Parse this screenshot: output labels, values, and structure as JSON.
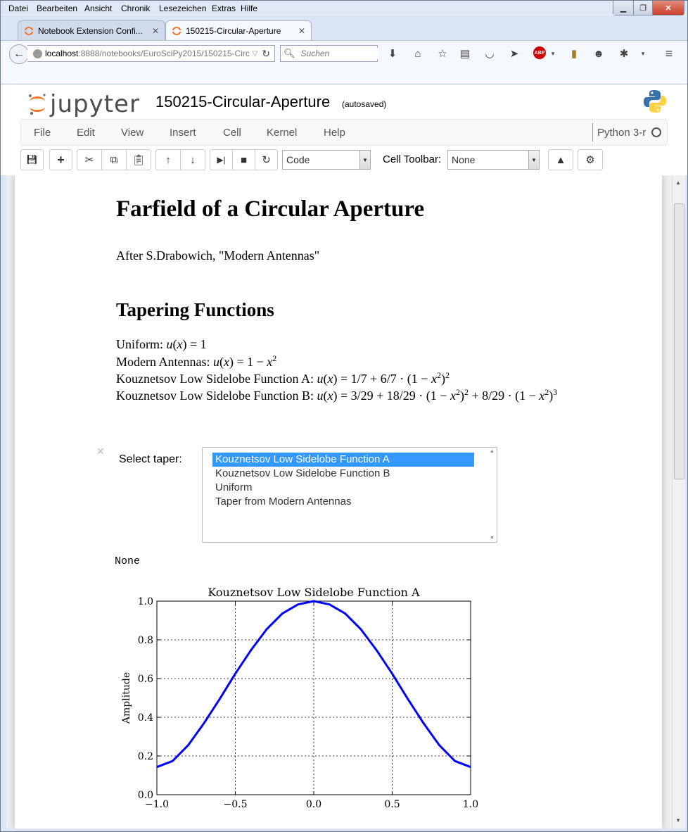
{
  "browser": {
    "menu": [
      "Datei",
      "Bearbeiten",
      "Ansicht",
      "Chronik",
      "Lesezeichen",
      "Extras",
      "Hilfe"
    ],
    "tabs": [
      {
        "title": "Notebook Extension Confi...",
        "active": false
      },
      {
        "title": "150215-Circular-Aperture",
        "active": true
      }
    ],
    "url_host": "localhost",
    "url_path": ":8888/notebooks/EuroSciPy2015/150215-Circ",
    "search_placeholder": "Suchen"
  },
  "jupyter": {
    "logo_text": "jupyter",
    "notebook_name": "150215-Circular-Aperture",
    "autosave": "(autosaved)",
    "menu": [
      "File",
      "Edit",
      "View",
      "Insert",
      "Cell",
      "Kernel",
      "Help"
    ],
    "kernel": "Python 3-r",
    "cell_type": "Code",
    "cell_toolbar_label": "Cell Toolbar:",
    "cell_toolbar_value": "None"
  },
  "content": {
    "title": "Farfield of a Circular Aperture",
    "subtitle": "After S.Drabowich, \"Modern Antennas\"",
    "section": "Tapering Functions",
    "tapers": [
      {
        "label": "Uniform: ",
        "formula": "u(x) = 1"
      },
      {
        "label": "Modern Antennas: ",
        "formula": "u(x) = 1 − x²"
      },
      {
        "label": "Kouznetsov Low Sidelobe Function A: ",
        "formula": "u(x) = 1/7 + 6/7 · (1 − x²)²"
      },
      {
        "label": "Kouznetsov Low Sidelobe Function B: ",
        "formula": "u(x) = 3/29 + 18/29 · (1 − x²)² + 8/29 · (1 − x²)³"
      }
    ],
    "widget_label": "Select taper:",
    "options": [
      "Kouznetsov Low Sidelobe Function A",
      "Kouznetsov Low Sidelobe Function B",
      "Uniform",
      "Taper from Modern Antennas"
    ],
    "selected_index": 0,
    "output_text": "None"
  },
  "chart_data": {
    "type": "line",
    "title": "Kouznetsov Low Sidelobe Function A",
    "xlabel": "",
    "ylabel": "Amplitude",
    "xlim": [
      -1.0,
      1.0
    ],
    "ylim": [
      0.0,
      1.0
    ],
    "xticks": [
      "−1.0",
      "−0.5",
      "0.0",
      "0.5",
      "1.0"
    ],
    "yticks": [
      "0.0",
      "0.2",
      "0.4",
      "0.6",
      "0.8",
      "1.0"
    ],
    "grid": true,
    "series": [
      {
        "color": "#0000ff",
        "x": [
          -1.0,
          -0.9,
          -0.8,
          -0.7,
          -0.6,
          -0.5,
          -0.4,
          -0.3,
          -0.2,
          -0.1,
          0.0,
          0.1,
          0.2,
          0.3,
          0.4,
          0.5,
          0.6,
          0.7,
          0.8,
          0.9,
          1.0
        ],
        "y": [
          0.143,
          0.174,
          0.256,
          0.369,
          0.494,
          0.625,
          0.747,
          0.855,
          0.936,
          0.983,
          1.0,
          0.983,
          0.936,
          0.855,
          0.747,
          0.625,
          0.494,
          0.369,
          0.256,
          0.174,
          0.143
        ]
      }
    ]
  }
}
